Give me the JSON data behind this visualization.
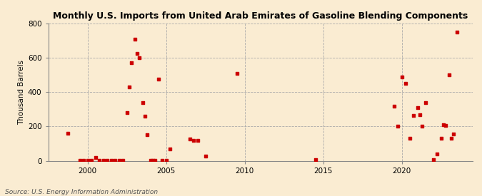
{
  "title": "Monthly U.S. Imports from United Arab Emirates of Gasoline Blending Components",
  "ylabel": "Thousand Barrels",
  "source": "Source: U.S. Energy Information Administration",
  "background_color": "#faecd2",
  "marker_color": "#cc0000",
  "xlim": [
    1997.5,
    2024.5
  ],
  "ylim": [
    0,
    800
  ],
  "yticks": [
    0,
    200,
    400,
    600,
    800
  ],
  "xticks": [
    2000,
    2005,
    2010,
    2015,
    2020
  ],
  "points": [
    [
      1998.75,
      160
    ],
    [
      1999.5,
      3
    ],
    [
      1999.75,
      3
    ],
    [
      2000.0,
      3
    ],
    [
      2000.25,
      3
    ],
    [
      2000.5,
      18
    ],
    [
      2000.75,
      3
    ],
    [
      2001.0,
      3
    ],
    [
      2001.25,
      3
    ],
    [
      2001.5,
      3
    ],
    [
      2001.75,
      3
    ],
    [
      2002.0,
      3
    ],
    [
      2002.25,
      3
    ],
    [
      2002.5,
      280
    ],
    [
      2002.65,
      430
    ],
    [
      2002.8,
      570
    ],
    [
      2003.0,
      710
    ],
    [
      2003.15,
      625
    ],
    [
      2003.3,
      600
    ],
    [
      2003.5,
      340
    ],
    [
      2003.65,
      260
    ],
    [
      2003.8,
      150
    ],
    [
      2004.0,
      3
    ],
    [
      2004.15,
      3
    ],
    [
      2004.3,
      3
    ],
    [
      2004.5,
      475
    ],
    [
      2004.75,
      3
    ],
    [
      2005.0,
      3
    ],
    [
      2005.25,
      70
    ],
    [
      2006.5,
      125
    ],
    [
      2006.75,
      120
    ],
    [
      2007.0,
      120
    ],
    [
      2007.5,
      25
    ],
    [
      2009.5,
      510
    ],
    [
      2014.5,
      8
    ],
    [
      2019.5,
      320
    ],
    [
      2019.75,
      200
    ],
    [
      2020.0,
      490
    ],
    [
      2020.25,
      450
    ],
    [
      2020.5,
      130
    ],
    [
      2020.75,
      265
    ],
    [
      2021.0,
      310
    ],
    [
      2021.15,
      270
    ],
    [
      2021.3,
      200
    ],
    [
      2021.5,
      340
    ],
    [
      2022.0,
      8
    ],
    [
      2022.25,
      40
    ],
    [
      2022.5,
      130
    ],
    [
      2022.65,
      210
    ],
    [
      2022.8,
      205
    ],
    [
      2023.0,
      500
    ],
    [
      2023.15,
      130
    ],
    [
      2023.3,
      155
    ],
    [
      2023.5,
      750
    ]
  ]
}
